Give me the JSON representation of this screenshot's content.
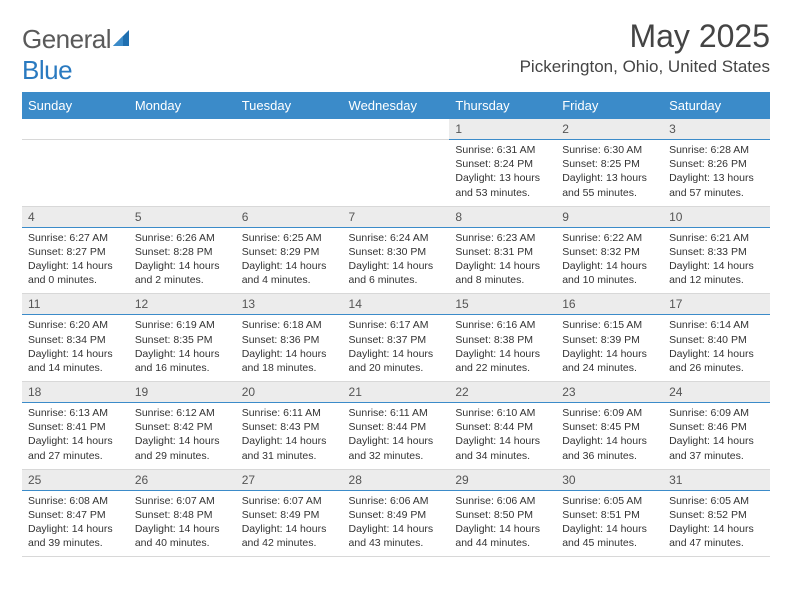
{
  "brand": {
    "part1": "General",
    "part2": "Blue"
  },
  "title": "May 2025",
  "location": "Pickerington, Ohio, United States",
  "colors": {
    "header_bg": "#3b8bc9",
    "header_text": "#ffffff",
    "daynum_bg": "#ececec",
    "rule": "#3b8bc9",
    "text": "#333333",
    "logo_gray": "#5a5a5a",
    "logo_blue": "#2a7ac0"
  },
  "typography": {
    "title_fontsize": 32,
    "location_fontsize": 17,
    "dayheader_fontsize": 13,
    "cell_fontsize": 10.5
  },
  "days": [
    "Sunday",
    "Monday",
    "Tuesday",
    "Wednesday",
    "Thursday",
    "Friday",
    "Saturday"
  ],
  "weeks": [
    [
      null,
      null,
      null,
      null,
      {
        "n": "1",
        "sr": "Sunrise: 6:31 AM",
        "ss": "Sunset: 8:24 PM",
        "dl": "Daylight: 13 hours and 53 minutes."
      },
      {
        "n": "2",
        "sr": "Sunrise: 6:30 AM",
        "ss": "Sunset: 8:25 PM",
        "dl": "Daylight: 13 hours and 55 minutes."
      },
      {
        "n": "3",
        "sr": "Sunrise: 6:28 AM",
        "ss": "Sunset: 8:26 PM",
        "dl": "Daylight: 13 hours and 57 minutes."
      }
    ],
    [
      {
        "n": "4",
        "sr": "Sunrise: 6:27 AM",
        "ss": "Sunset: 8:27 PM",
        "dl": "Daylight: 14 hours and 0 minutes."
      },
      {
        "n": "5",
        "sr": "Sunrise: 6:26 AM",
        "ss": "Sunset: 8:28 PM",
        "dl": "Daylight: 14 hours and 2 minutes."
      },
      {
        "n": "6",
        "sr": "Sunrise: 6:25 AM",
        "ss": "Sunset: 8:29 PM",
        "dl": "Daylight: 14 hours and 4 minutes."
      },
      {
        "n": "7",
        "sr": "Sunrise: 6:24 AM",
        "ss": "Sunset: 8:30 PM",
        "dl": "Daylight: 14 hours and 6 minutes."
      },
      {
        "n": "8",
        "sr": "Sunrise: 6:23 AM",
        "ss": "Sunset: 8:31 PM",
        "dl": "Daylight: 14 hours and 8 minutes."
      },
      {
        "n": "9",
        "sr": "Sunrise: 6:22 AM",
        "ss": "Sunset: 8:32 PM",
        "dl": "Daylight: 14 hours and 10 minutes."
      },
      {
        "n": "10",
        "sr": "Sunrise: 6:21 AM",
        "ss": "Sunset: 8:33 PM",
        "dl": "Daylight: 14 hours and 12 minutes."
      }
    ],
    [
      {
        "n": "11",
        "sr": "Sunrise: 6:20 AM",
        "ss": "Sunset: 8:34 PM",
        "dl": "Daylight: 14 hours and 14 minutes."
      },
      {
        "n": "12",
        "sr": "Sunrise: 6:19 AM",
        "ss": "Sunset: 8:35 PM",
        "dl": "Daylight: 14 hours and 16 minutes."
      },
      {
        "n": "13",
        "sr": "Sunrise: 6:18 AM",
        "ss": "Sunset: 8:36 PM",
        "dl": "Daylight: 14 hours and 18 minutes."
      },
      {
        "n": "14",
        "sr": "Sunrise: 6:17 AM",
        "ss": "Sunset: 8:37 PM",
        "dl": "Daylight: 14 hours and 20 minutes."
      },
      {
        "n": "15",
        "sr": "Sunrise: 6:16 AM",
        "ss": "Sunset: 8:38 PM",
        "dl": "Daylight: 14 hours and 22 minutes."
      },
      {
        "n": "16",
        "sr": "Sunrise: 6:15 AM",
        "ss": "Sunset: 8:39 PM",
        "dl": "Daylight: 14 hours and 24 minutes."
      },
      {
        "n": "17",
        "sr": "Sunrise: 6:14 AM",
        "ss": "Sunset: 8:40 PM",
        "dl": "Daylight: 14 hours and 26 minutes."
      }
    ],
    [
      {
        "n": "18",
        "sr": "Sunrise: 6:13 AM",
        "ss": "Sunset: 8:41 PM",
        "dl": "Daylight: 14 hours and 27 minutes."
      },
      {
        "n": "19",
        "sr": "Sunrise: 6:12 AM",
        "ss": "Sunset: 8:42 PM",
        "dl": "Daylight: 14 hours and 29 minutes."
      },
      {
        "n": "20",
        "sr": "Sunrise: 6:11 AM",
        "ss": "Sunset: 8:43 PM",
        "dl": "Daylight: 14 hours and 31 minutes."
      },
      {
        "n": "21",
        "sr": "Sunrise: 6:11 AM",
        "ss": "Sunset: 8:44 PM",
        "dl": "Daylight: 14 hours and 32 minutes."
      },
      {
        "n": "22",
        "sr": "Sunrise: 6:10 AM",
        "ss": "Sunset: 8:44 PM",
        "dl": "Daylight: 14 hours and 34 minutes."
      },
      {
        "n": "23",
        "sr": "Sunrise: 6:09 AM",
        "ss": "Sunset: 8:45 PM",
        "dl": "Daylight: 14 hours and 36 minutes."
      },
      {
        "n": "24",
        "sr": "Sunrise: 6:09 AM",
        "ss": "Sunset: 8:46 PM",
        "dl": "Daylight: 14 hours and 37 minutes."
      }
    ],
    [
      {
        "n": "25",
        "sr": "Sunrise: 6:08 AM",
        "ss": "Sunset: 8:47 PM",
        "dl": "Daylight: 14 hours and 39 minutes."
      },
      {
        "n": "26",
        "sr": "Sunrise: 6:07 AM",
        "ss": "Sunset: 8:48 PM",
        "dl": "Daylight: 14 hours and 40 minutes."
      },
      {
        "n": "27",
        "sr": "Sunrise: 6:07 AM",
        "ss": "Sunset: 8:49 PM",
        "dl": "Daylight: 14 hours and 42 minutes."
      },
      {
        "n": "28",
        "sr": "Sunrise: 6:06 AM",
        "ss": "Sunset: 8:49 PM",
        "dl": "Daylight: 14 hours and 43 minutes."
      },
      {
        "n": "29",
        "sr": "Sunrise: 6:06 AM",
        "ss": "Sunset: 8:50 PM",
        "dl": "Daylight: 14 hours and 44 minutes."
      },
      {
        "n": "30",
        "sr": "Sunrise: 6:05 AM",
        "ss": "Sunset: 8:51 PM",
        "dl": "Daylight: 14 hours and 45 minutes."
      },
      {
        "n": "31",
        "sr": "Sunrise: 6:05 AM",
        "ss": "Sunset: 8:52 PM",
        "dl": "Daylight: 14 hours and 47 minutes."
      }
    ]
  ]
}
